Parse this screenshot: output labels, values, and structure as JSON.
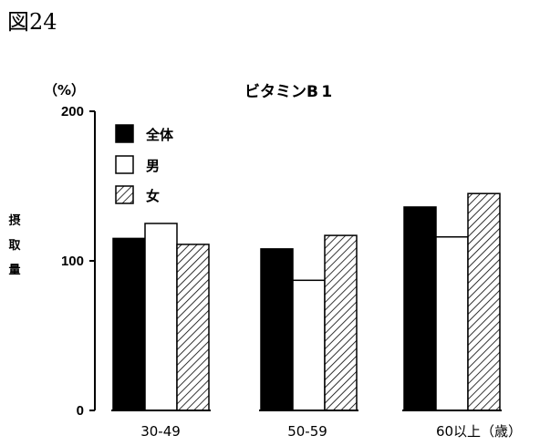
{
  "figure_label": "図24",
  "chart_data": {
    "type": "bar",
    "title": "ビタミンB 1",
    "unit_label": "（%）",
    "ylabel": "摂取量",
    "xlabel": "",
    "categories": [
      "30-49",
      "50-59",
      "60以上（歳）"
    ],
    "ylim": [
      0,
      200
    ],
    "yticks": [
      "0",
      "100",
      "200"
    ],
    "series": [
      {
        "name": "全体",
        "values": [
          115,
          108,
          136
        ],
        "fill": "solid",
        "color": "#000000"
      },
      {
        "name": "男",
        "values": [
          125,
          87,
          116
        ],
        "fill": "white",
        "color": "#ffffff"
      },
      {
        "name": "女",
        "values": [
          111,
          117,
          145
        ],
        "fill": "hatch",
        "color": "#000000"
      }
    ],
    "legend_position": "top-left",
    "grid": false
  }
}
